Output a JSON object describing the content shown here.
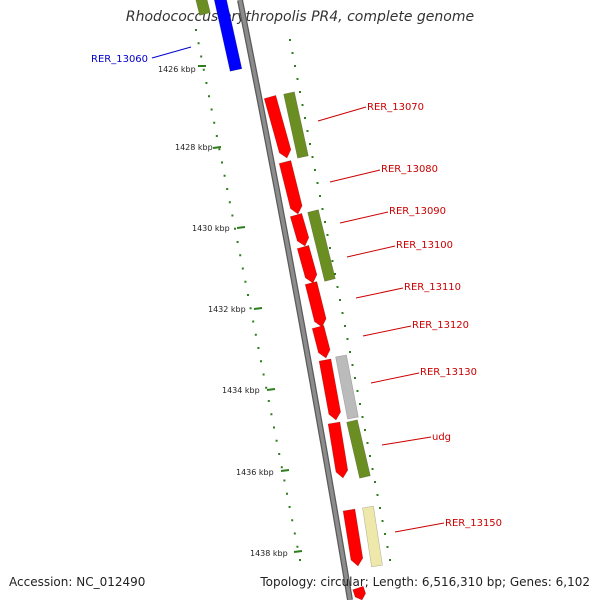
{
  "title": "Rhodococcus erythropolis PR4, complete genome",
  "accession": "Accession: NC_012490",
  "topology": "Topology: circular; Length: 6,516,310 bp; Genes: 6,102",
  "colors": {
    "backbone": "#8c8c8c",
    "tick": "#2e7d1e",
    "label_red": "#cc0000",
    "label_blue": "#0000cc"
  },
  "scale_labels": [
    "1426 kbp",
    "1428 kbp",
    "1430 kbp",
    "1432 kbp",
    "1434 kbp",
    "1436 kbp",
    "1438 kbp"
  ],
  "gene_labels": [
    {
      "text": "RER_13060",
      "color": "blue"
    },
    {
      "text": "RER_13070",
      "color": "red"
    },
    {
      "text": "RER_13080",
      "color": "red"
    },
    {
      "text": "RER_13090",
      "color": "red"
    },
    {
      "text": "RER_13100",
      "color": "red"
    },
    {
      "text": "RER_13110",
      "color": "red"
    },
    {
      "text": "RER_13120",
      "color": "red"
    },
    {
      "text": "RER_13130",
      "color": "red"
    },
    {
      "text": "udg",
      "color": "red"
    },
    {
      "text": "RER_13150",
      "color": "red"
    }
  ],
  "features": [
    {
      "name": "olive-top",
      "color": "#6b8e23",
      "strand": "minus"
    },
    {
      "name": "blue-top",
      "color": "#0000ff",
      "strand": "minus"
    },
    {
      "name": "red-1",
      "color": "#ff0000",
      "strand": "plus"
    },
    {
      "name": "olive-1",
      "color": "#6b8e23",
      "strand": "minus"
    },
    {
      "name": "red-2",
      "color": "#ff0000",
      "strand": "plus"
    },
    {
      "name": "red-3",
      "color": "#ff0000",
      "strand": "plus"
    },
    {
      "name": "olive-2",
      "color": "#6b8e23",
      "strand": "minus"
    },
    {
      "name": "red-4",
      "color": "#ff0000",
      "strand": "plus"
    },
    {
      "name": "red-5",
      "color": "#ff0000",
      "strand": "plus"
    },
    {
      "name": "red-6",
      "color": "#ff0000",
      "strand": "plus"
    },
    {
      "name": "gray-1",
      "color": "#bbbbbb",
      "strand": "minus"
    },
    {
      "name": "red-7",
      "color": "#ff0000",
      "strand": "plus"
    },
    {
      "name": "red-8",
      "color": "#ff0000",
      "strand": "plus"
    },
    {
      "name": "olive-3",
      "color": "#6b8e23",
      "strand": "minus"
    },
    {
      "name": "red-9",
      "color": "#ff0000",
      "strand": "plus"
    },
    {
      "name": "yellow-1",
      "color": "#eee8aa",
      "strand": "minus"
    },
    {
      "name": "red-bottom",
      "color": "#ff0000",
      "strand": "plus"
    }
  ]
}
